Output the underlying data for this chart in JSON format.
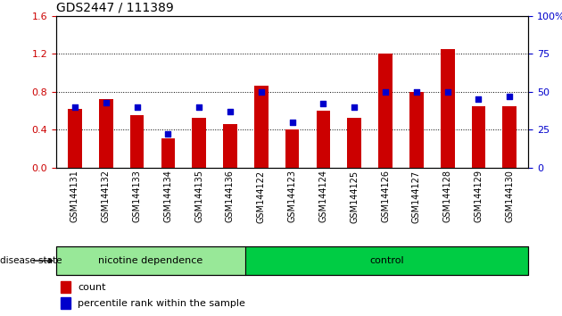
{
  "title": "GDS2447 / 111389",
  "samples": [
    "GSM144131",
    "GSM144132",
    "GSM144133",
    "GSM144134",
    "GSM144135",
    "GSM144136",
    "GSM144122",
    "GSM144123",
    "GSM144124",
    "GSM144125",
    "GSM144126",
    "GSM144127",
    "GSM144128",
    "GSM144129",
    "GSM144130"
  ],
  "count_values": [
    0.62,
    0.72,
    0.55,
    0.31,
    0.52,
    0.46,
    0.86,
    0.4,
    0.6,
    0.52,
    1.2,
    0.8,
    1.25,
    0.65,
    0.65
  ],
  "percentile_values": [
    40,
    43,
    40,
    22,
    40,
    37,
    50,
    30,
    42,
    40,
    50,
    50,
    50,
    45,
    47
  ],
  "bar_color": "#CC0000",
  "dot_color": "#0000CC",
  "background_color": "#ffffff",
  "ylim_left": [
    0,
    1.6
  ],
  "ylim_right": [
    0,
    100
  ],
  "yticks_left": [
    0,
    0.4,
    0.8,
    1.2,
    1.6
  ],
  "yticks_right": [
    0,
    25,
    50,
    75,
    100
  ],
  "groups": [
    {
      "label": "nicotine dependence",
      "start": 0,
      "end": 6,
      "color": "#98E898"
    },
    {
      "label": "control",
      "start": 6,
      "end": 15,
      "color": "#00CC44"
    }
  ],
  "group_label": "disease state",
  "legend_count_label": "count",
  "legend_pct_label": "percentile rank within the sample",
  "bar_width": 0.45,
  "tick_label_fontsize": 7,
  "title_fontsize": 10
}
